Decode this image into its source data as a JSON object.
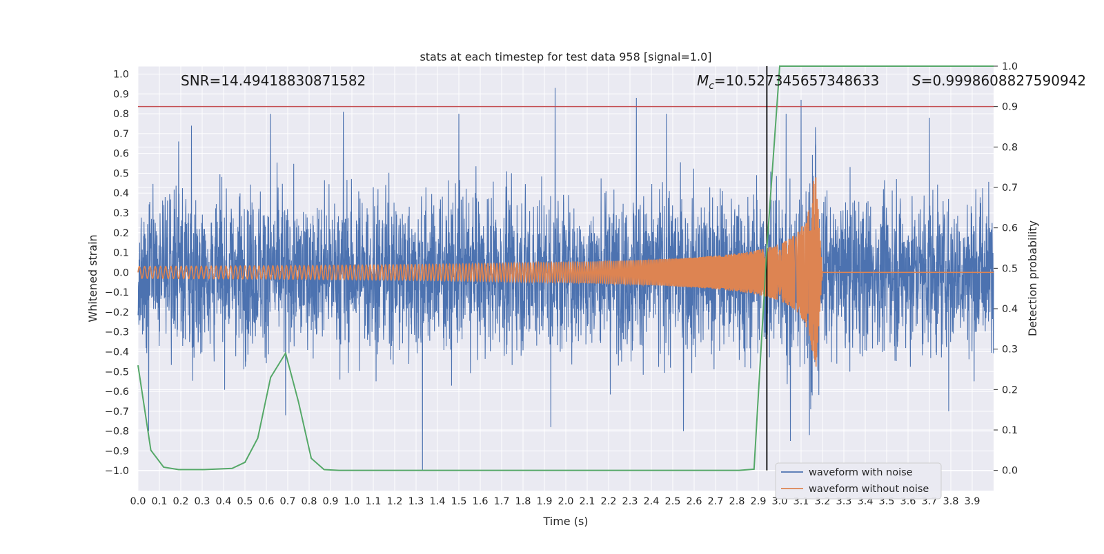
{
  "chart_data": {
    "type": "line",
    "title": "stats at each timestep for test data 958 [signal=1.0]",
    "xlabel": "Time (s)",
    "ylabel": "Whitened strain",
    "y2label": "Detection probability",
    "xlim": [
      0.0,
      4.0
    ],
    "ylim": [
      -1.1,
      1.04
    ],
    "y2lim": [
      -0.05,
      1.0
    ],
    "xticks": [
      "0.0",
      "0.1",
      "0.2",
      "0.3",
      "0.4",
      "0.5",
      "0.6",
      "0.7",
      "0.8",
      "0.9",
      "1.0",
      "1.1",
      "1.2",
      "1.3",
      "1.4",
      "1.5",
      "1.6",
      "1.7",
      "1.8",
      "1.9",
      "2.0",
      "2.1",
      "2.2",
      "2.3",
      "2.4",
      "2.5",
      "2.6",
      "2.7",
      "2.8",
      "2.9",
      "3.0",
      "3.1",
      "3.2",
      "3.3",
      "3.4",
      "3.5",
      "3.6",
      "3.7",
      "3.8",
      "3.9"
    ],
    "yticks": [
      "1.0",
      "0.9",
      "0.8",
      "0.7",
      "0.6",
      "0.5",
      "0.4",
      "0.3",
      "0.2",
      "0.1",
      "0.0",
      "-0.1",
      "-0.2",
      "-0.3",
      "-0.4",
      "-0.5",
      "-0.6",
      "-0.7",
      "-0.8",
      "-0.9",
      "-1.0"
    ],
    "y2ticks": [
      "0.0",
      "0.1",
      "0.2",
      "0.3",
      "0.4",
      "0.5",
      "0.6",
      "0.7",
      "0.8",
      "0.9",
      "1.0"
    ],
    "grid": true,
    "legend_position": "lower-right",
    "annotations": {
      "snr": "SNR=14.49418830871582",
      "mc_symbol": "M",
      "mc_subscript": "c",
      "mc_value": "=10.527345657348633",
      "s_symbol": "S",
      "s_value": "=0.9998608827590942"
    },
    "threshold": {
      "y2": 0.9,
      "color": "#c44e52"
    },
    "marker_line": {
      "x": 2.94,
      "color": "#000000"
    },
    "series": [
      {
        "name": "waveform with noise",
        "color": "#4c72b0",
        "envelope": {
          "typical_amplitude": 0.45,
          "max": 0.93,
          "min": -1.0
        },
        "spikes": [
          [
            0.05,
            -0.8
          ],
          [
            0.19,
            0.66
          ],
          [
            0.25,
            0.74
          ],
          [
            0.62,
            0.8
          ],
          [
            0.69,
            -0.72
          ],
          [
            0.96,
            0.81
          ],
          [
            1.33,
            -1.0
          ],
          [
            1.5,
            0.8
          ],
          [
            1.95,
            0.93
          ],
          [
            1.93,
            -0.78
          ],
          [
            2.33,
            0.88
          ],
          [
            2.47,
            0.8
          ],
          [
            2.55,
            -0.8
          ],
          [
            3.03,
            0.8
          ],
          [
            3.1,
            0.87
          ],
          [
            3.05,
            -0.85
          ],
          [
            3.7,
            0.78
          ],
          [
            3.79,
            -0.7
          ]
        ]
      },
      {
        "name": "waveform without noise",
        "color": "#dd8452",
        "chirp": {
          "start_amplitude": 0.03,
          "peak_time": 3.17,
          "peak_amplitude": 0.48,
          "start_frequency_hz": 40,
          "end_frequency_hz": 200,
          "ringdown_until": 3.2
        }
      },
      {
        "name": "detection probability",
        "axis": "y2",
        "color": "#55a868",
        "x": [
          0.0,
          0.06,
          0.12,
          0.19,
          0.31,
          0.44,
          0.5,
          0.56,
          0.62,
          0.69,
          0.75,
          0.81,
          0.87,
          0.94,
          1.0,
          2.81,
          2.88,
          2.94,
          3.0,
          4.0
        ],
        "y": [
          0.26,
          0.05,
          0.008,
          0.002,
          0.002,
          0.005,
          0.02,
          0.08,
          0.23,
          0.29,
          0.17,
          0.03,
          0.002,
          0.0,
          0.0,
          0.0,
          0.003,
          0.55,
          1.0,
          1.0
        ]
      }
    ]
  }
}
